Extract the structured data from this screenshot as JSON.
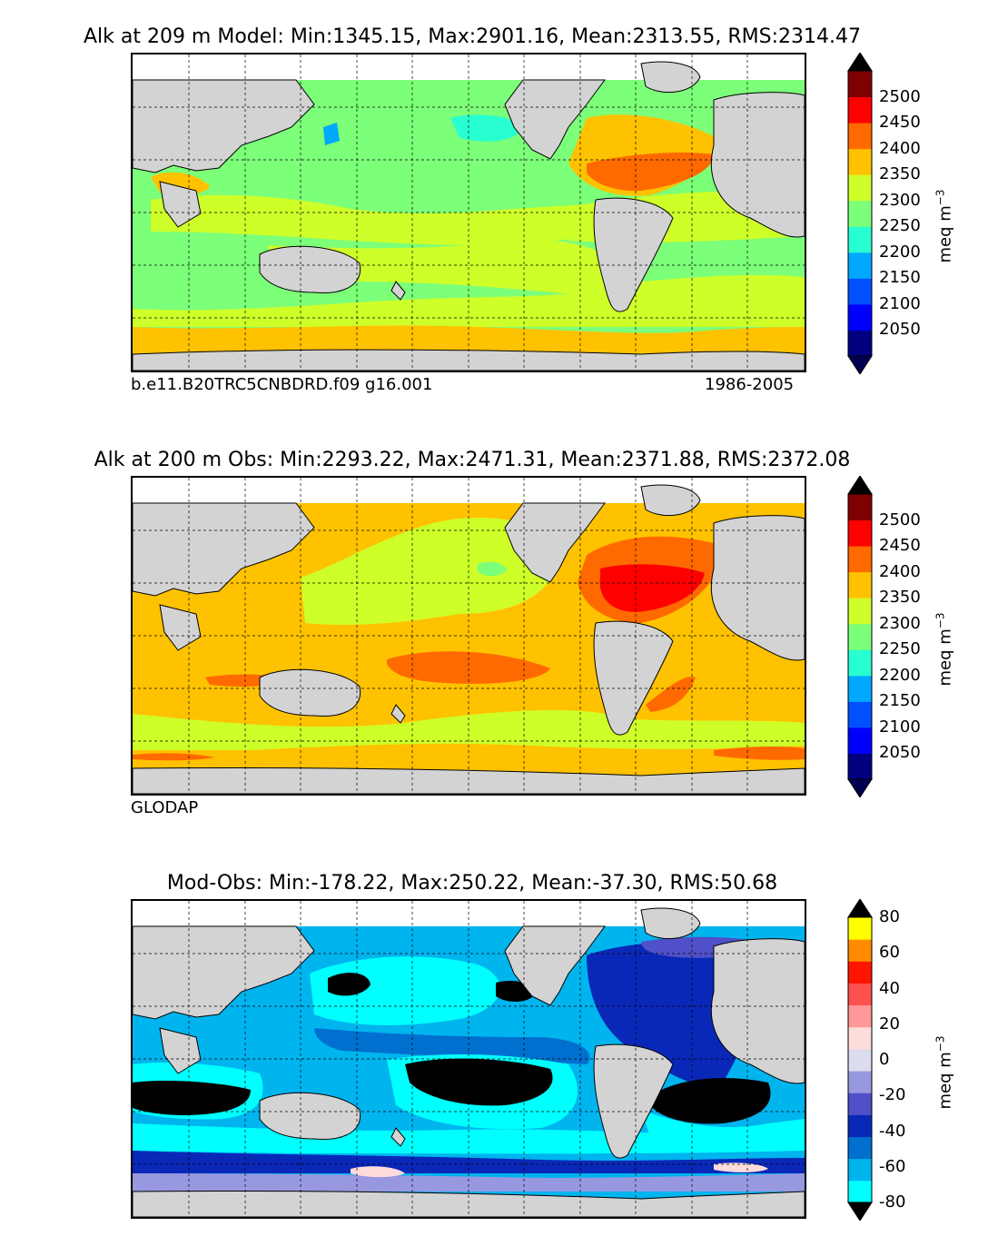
{
  "panels": [
    {
      "id": "model",
      "title": "Alk at 209 m Model: Min:1345.15, Max:2901.16, Mean:2313.55, RMS:2314.47",
      "footer_left": "b.e11.B20TRC5CNBDRD.f09 g16.001",
      "footer_right": "1986-2005",
      "units_main": "meq m",
      "units_exp": "−3",
      "colorbar": {
        "ticks": [
          "2500",
          "2450",
          "2400",
          "2350",
          "2300",
          "2250",
          "2200",
          "2150",
          "2100",
          "2050"
        ],
        "colors": [
          "#000080",
          "#0000ff",
          "#0050ff",
          "#00a8ff",
          "#28ffd0",
          "#7cff79",
          "#ceff29",
          "#ffc200",
          "#ff6a00",
          "#ff0000",
          "#800000"
        ],
        "under_color": "#000050",
        "over_color": "#000000"
      }
    },
    {
      "id": "obs",
      "title": "Alk at 200 m Obs: Min:2293.22, Max:2471.31, Mean:2371.88, RMS:2372.08",
      "footer_left": "GLODAP",
      "footer_right": "",
      "units_main": "meq m",
      "units_exp": "−3",
      "colorbar": {
        "ticks": [
          "2500",
          "2450",
          "2400",
          "2350",
          "2300",
          "2250",
          "2200",
          "2150",
          "2100",
          "2050"
        ],
        "colors": [
          "#000080",
          "#0000ff",
          "#0050ff",
          "#00a8ff",
          "#28ffd0",
          "#7cff79",
          "#ceff29",
          "#ffc200",
          "#ff6a00",
          "#ff0000",
          "#800000"
        ],
        "under_color": "#000050",
        "over_color": "#000000"
      }
    },
    {
      "id": "diff",
      "title": "Mod-Obs: Min:-178.22, Max:250.22, Mean:-37.30, RMS:50.68",
      "footer_left": "",
      "footer_right": "",
      "units_main": "meq m",
      "units_exp": "−3",
      "colorbar": {
        "ticks": [
          "80",
          "60",
          "40",
          "20",
          "0",
          "-20",
          "-40",
          "-60",
          "-80"
        ],
        "colors": [
          "#00ffff",
          "#00b4ee",
          "#0070d0",
          "#0a28b8",
          "#5050c8",
          "#9898e0",
          "#dcdcf0",
          "#ffdcdc",
          "#ff9898",
          "#ff5050",
          "#ff1400",
          "#ff8c00",
          "#ffff00"
        ],
        "under_color": "#000000",
        "over_color": "#000000"
      }
    }
  ],
  "chart_data": [
    {
      "type": "heatmap",
      "title": "Alk at 209 m Model: Min:1345.15, Max:2901.16, Mean:2313.55, RMS:2314.47",
      "variable": "Alk",
      "depth_m": 209,
      "stats": {
        "min": 1345.15,
        "max": 2901.16,
        "mean": 2313.55,
        "rms": 2314.47
      },
      "colorbar_label": "meq m−3",
      "colorbar_ticks": [
        2050,
        2100,
        2150,
        2200,
        2250,
        2300,
        2350,
        2400,
        2450,
        2500
      ],
      "footer": [
        "b.e11.B20TRC5CNBDRD.f09 g16.001",
        "1986-2005"
      ],
      "regions": [
        {
          "value_band": [
            2250,
            2300
          ],
          "where": "open Pacific and Indian Ocean"
        },
        {
          "value_band": [
            2300,
            2350
          ],
          "where": "equatorial belts and South Pacific gyre"
        },
        {
          "value_band": [
            2350,
            2400
          ],
          "where": "Southern Ocean band and western Indian Ocean"
        },
        {
          "value_band": [
            2400,
            2450
          ],
          "where": "subtropical North Atlantic"
        }
      ]
    },
    {
      "type": "heatmap",
      "title": "Alk at 200 m Obs: Min:2293.22, Max:2471.31, Mean:2371.88, RMS:2372.08",
      "variable": "Alk",
      "depth_m": 200,
      "stats": {
        "min": 2293.22,
        "max": 2471.31,
        "mean": 2371.88,
        "rms": 2372.08
      },
      "colorbar_label": "meq m−3",
      "colorbar_ticks": [
        2050,
        2100,
        2150,
        2200,
        2250,
        2300,
        2350,
        2400,
        2450,
        2500
      ],
      "footer": [
        "GLODAP"
      ],
      "regions": [
        {
          "value_band": [
            2300,
            2350
          ],
          "where": "North Pacific"
        },
        {
          "value_band": [
            2350,
            2400
          ],
          "where": "most of the tropical and southern oceans"
        },
        {
          "value_band": [
            2400,
            2450
          ],
          "where": "South Pacific and South Indian gyres"
        },
        {
          "value_band": [
            2450,
            2500
          ],
          "where": "subtropical North Atlantic"
        }
      ]
    },
    {
      "type": "heatmap",
      "title": "Mod-Obs: Min:-178.22, Max:250.22, Mean:-37.30, RMS:50.68",
      "stats": {
        "min": -178.22,
        "max": 250.22,
        "mean": -37.3,
        "rms": 50.68
      },
      "colorbar_label": "meq m−3",
      "colorbar_ticks": [
        -80,
        -60,
        -40,
        -20,
        0,
        20,
        40,
        60,
        80
      ],
      "regions": [
        {
          "value_band": [
            -1000,
            -80
          ],
          "where": "North Pacific, South Pacific gyre, South Indian Ocean, South Atlantic"
        },
        {
          "value_band": [
            -80,
            -40
          ],
          "where": "much of the Pacific and Indian oceans"
        },
        {
          "value_band": [
            -40,
            0
          ],
          "where": "North Atlantic and Southern Ocean"
        },
        {
          "value_band": [
            0,
            20
          ],
          "where": "small patches in the Southern Ocean"
        }
      ]
    }
  ]
}
